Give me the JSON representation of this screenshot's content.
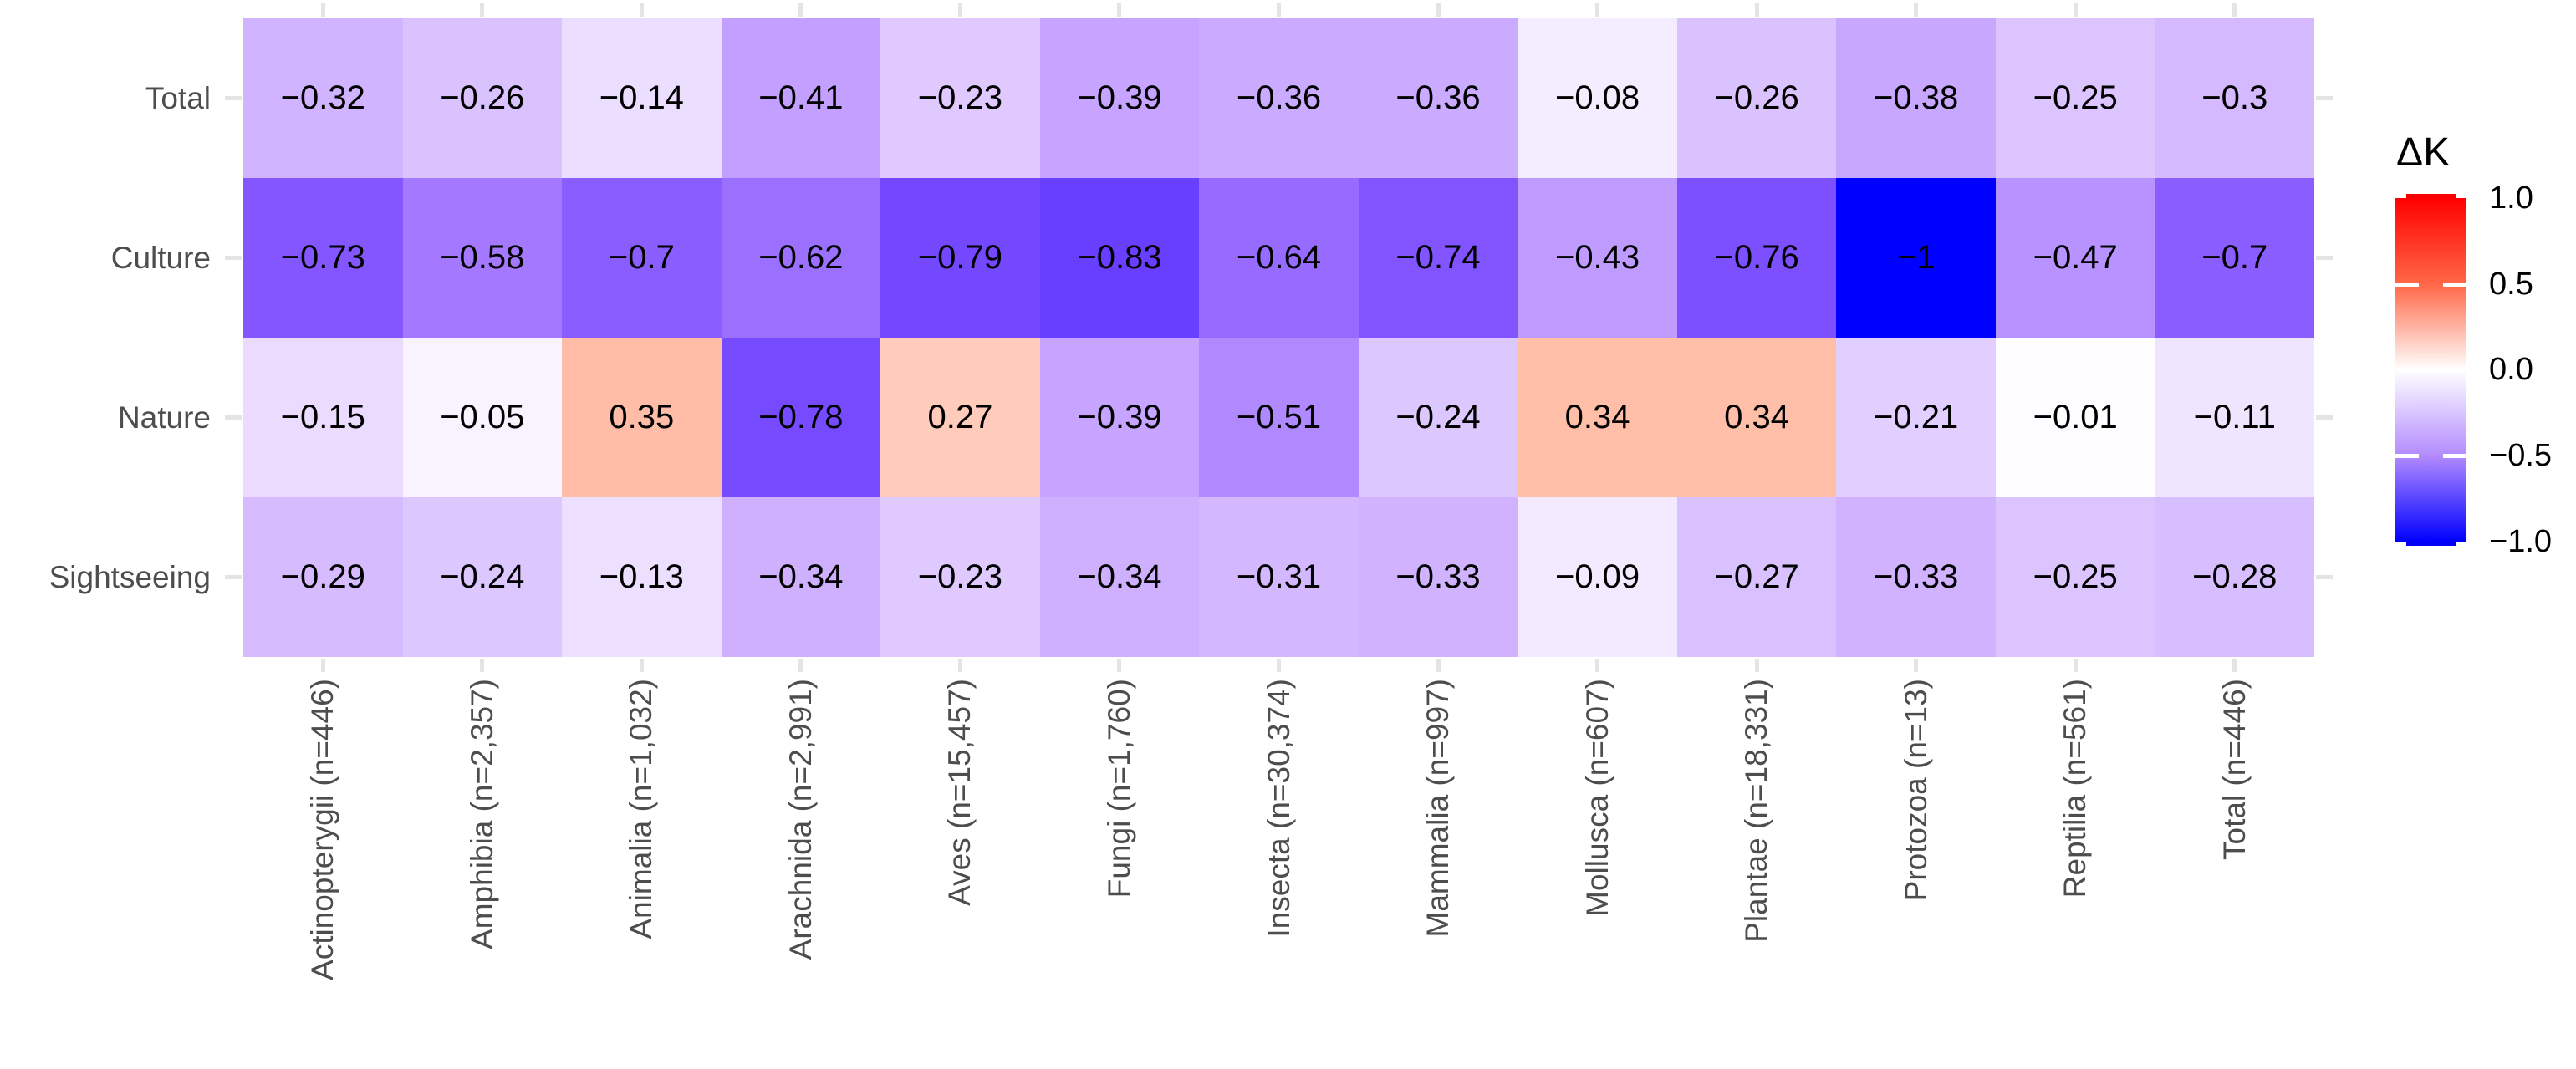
{
  "chart_data": {
    "type": "heatmap",
    "title": "",
    "xlabel": "",
    "ylabel": "",
    "legend": {
      "title": "ΔK",
      "position": "right",
      "ticks": [
        "1.0",
        "0.5",
        "0.0",
        "−0.5",
        "−1.0"
      ],
      "tick_values": [
        1.0,
        0.5,
        0.0,
        -0.5,
        -1.0
      ],
      "limits": [
        -1,
        1
      ],
      "gradient_high": "#ff0000",
      "gradient_mid": "#ffffff",
      "gradient_low": "#0000ff"
    },
    "x_categories": [
      "Actinopterygii (n=446)",
      "Amphibia (n=2,357)",
      "Animalia (n=1,032)",
      "Arachnida (n=2,991)",
      "Aves (n=15,457)",
      "Fungi (n=1,760)",
      "Insecta (n=30,374)",
      "Mammalia (n=997)",
      "Mollusca (n=607)",
      "Plantae (n=18,331)",
      "Protozoa (n=13)",
      "Reptilia (n=561)",
      "Total (n=446)"
    ],
    "y_categories": [
      "Total",
      "Culture",
      "Nature",
      "Sightseeing"
    ],
    "series": [
      {
        "name": "Total",
        "values": [
          -0.32,
          -0.26,
          -0.14,
          -0.41,
          -0.23,
          -0.39,
          -0.36,
          -0.36,
          -0.08,
          -0.26,
          -0.38,
          -0.25,
          -0.3
        ]
      },
      {
        "name": "Culture",
        "values": [
          -0.73,
          -0.58,
          -0.7,
          -0.62,
          -0.79,
          -0.83,
          -0.64,
          -0.74,
          -0.43,
          -0.76,
          -1,
          -0.47,
          -0.7
        ]
      },
      {
        "name": "Nature",
        "values": [
          -0.15,
          -0.05,
          0.35,
          -0.78,
          0.27,
          -0.39,
          -0.51,
          -0.24,
          0.34,
          0.34,
          -0.21,
          -0.01,
          -0.11
        ]
      },
      {
        "name": "Sightseeing",
        "values": [
          -0.29,
          -0.24,
          -0.13,
          -0.34,
          -0.23,
          -0.34,
          -0.31,
          -0.33,
          -0.09,
          -0.27,
          -0.33,
          -0.25,
          -0.28
        ]
      }
    ],
    "grid": false,
    "colors": {
      "axis_text": "#4d4d4d",
      "cell_text": "#000000",
      "tick_mark": "#e4e4e4",
      "background": "#ffffff"
    }
  }
}
